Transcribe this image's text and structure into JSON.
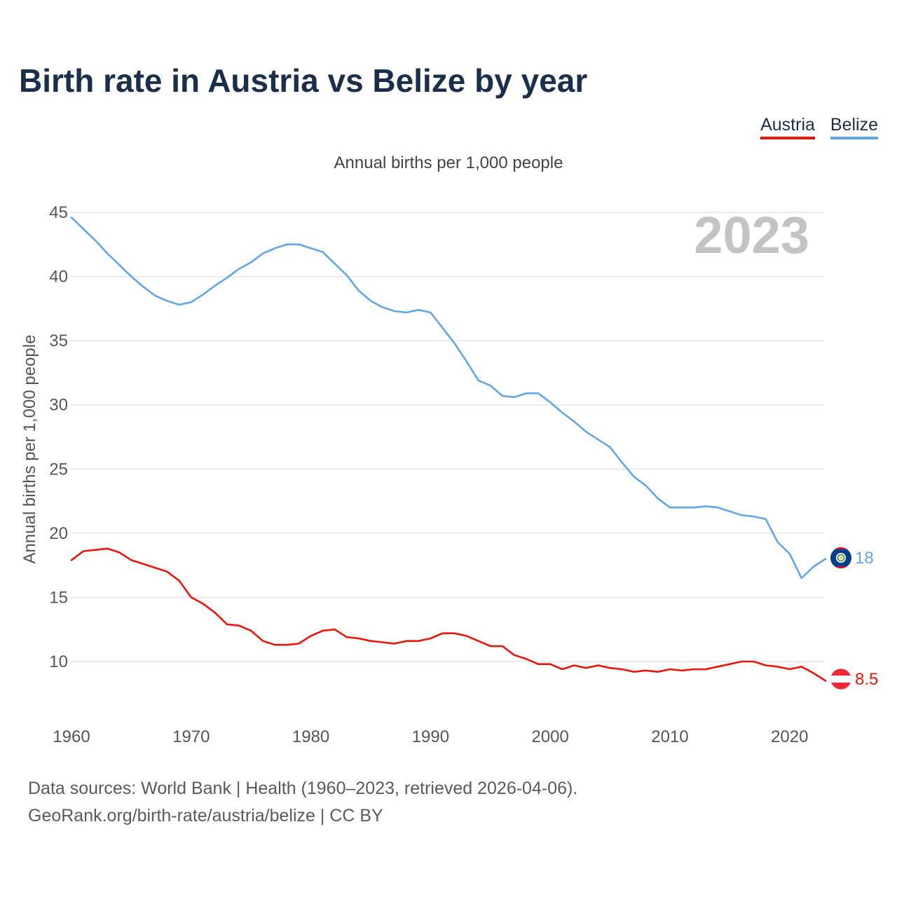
{
  "title": "Birth rate in Austria vs Belize by year",
  "legend": [
    {
      "label": "Austria",
      "color": "#e8160c"
    },
    {
      "label": "Belize",
      "color": "#62a6e6"
    }
  ],
  "footer": {
    "line1": "Data sources: World Bank | Health (1960–2023, retrieved 2026-04-06).",
    "line2": "GeoRank.org/birth-rate/austria/belize | CC BY"
  },
  "chart_data": {
    "type": "line",
    "subtitle": "Annual births per 1,000 people",
    "ylabel": "Annual births per 1,000 people",
    "xlabel": "",
    "year_label": "2023",
    "xlim": [
      1960,
      2023
    ],
    "ylim": [
      10,
      45
    ],
    "x_ticks": [
      1960,
      1970,
      1980,
      1990,
      2000,
      2010,
      2020
    ],
    "y_ticks": [
      10,
      15,
      20,
      25,
      30,
      35,
      40,
      45
    ],
    "grid": true,
    "legend_position": "top-right",
    "x": [
      1960,
      1961,
      1962,
      1963,
      1964,
      1965,
      1966,
      1967,
      1968,
      1969,
      1970,
      1971,
      1972,
      1973,
      1974,
      1975,
      1976,
      1977,
      1978,
      1979,
      1980,
      1981,
      1982,
      1983,
      1984,
      1985,
      1986,
      1987,
      1988,
      1989,
      1990,
      1991,
      1992,
      1993,
      1994,
      1995,
      1996,
      1997,
      1998,
      1999,
      2000,
      2001,
      2002,
      2003,
      2004,
      2005,
      2006,
      2007,
      2008,
      2009,
      2010,
      2011,
      2012,
      2013,
      2014,
      2015,
      2016,
      2017,
      2018,
      2019,
      2020,
      2021,
      2022,
      2023
    ],
    "series": [
      {
        "name": "Austria",
        "color": "#e8160c",
        "end_label": "8.5",
        "values": [
          17.9,
          18.6,
          18.7,
          18.8,
          18.5,
          17.9,
          17.6,
          17.3,
          17.0,
          16.3,
          15.0,
          14.5,
          13.8,
          12.9,
          12.8,
          12.4,
          11.6,
          11.3,
          11.3,
          11.4,
          12.0,
          12.4,
          12.5,
          11.9,
          11.8,
          11.6,
          11.5,
          11.4,
          11.6,
          11.6,
          11.8,
          12.2,
          12.2,
          12.0,
          11.6,
          11.2,
          11.2,
          10.5,
          10.2,
          9.8,
          9.8,
          9.4,
          9.7,
          9.5,
          9.7,
          9.5,
          9.4,
          9.2,
          9.3,
          9.2,
          9.4,
          9.3,
          9.4,
          9.4,
          9.6,
          9.8,
          10.0,
          10.0,
          9.7,
          9.6,
          9.4,
          9.6,
          9.1,
          8.5
        ]
      },
      {
        "name": "Belize",
        "color": "#62a6e6",
        "end_label": "18",
        "values": [
          44.6,
          43.7,
          42.8,
          41.8,
          40.9,
          40.0,
          39.2,
          38.5,
          38.1,
          37.8,
          38.0,
          38.6,
          39.3,
          39.9,
          40.6,
          41.1,
          41.8,
          42.2,
          42.5,
          42.5,
          42.2,
          41.9,
          41.0,
          40.1,
          38.9,
          38.1,
          37.6,
          37.3,
          37.2,
          37.4,
          37.2,
          36.0,
          34.8,
          33.4,
          31.9,
          31.5,
          30.7,
          30.6,
          30.9,
          30.9,
          30.2,
          29.4,
          28.7,
          27.9,
          27.3,
          26.7,
          25.5,
          24.4,
          23.7,
          22.7,
          22.0,
          22.0,
          22.0,
          22.1,
          22.0,
          21.7,
          21.4,
          21.3,
          21.1,
          19.3,
          18.4,
          16.5,
          17.4,
          18.0
        ]
      }
    ]
  }
}
